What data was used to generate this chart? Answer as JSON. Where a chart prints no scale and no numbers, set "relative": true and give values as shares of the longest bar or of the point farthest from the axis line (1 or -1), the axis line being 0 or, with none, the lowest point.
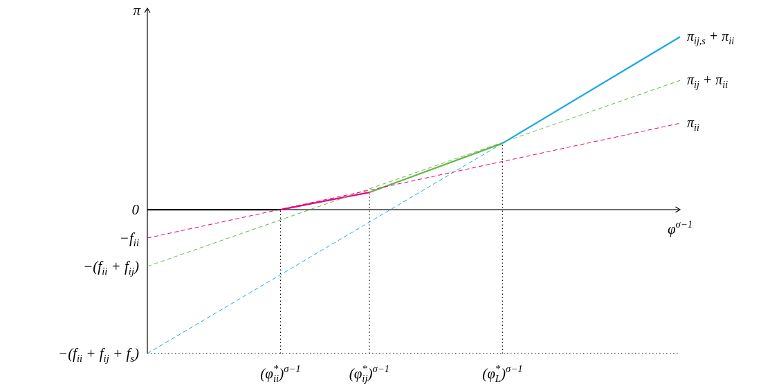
{
  "chart_data": {
    "type": "line",
    "relative": true,
    "xlabel": "φ$^{σ−1}$",
    "ylabel": "π",
    "categories": [
      null,
      null,
      null,
      "(φ$^{*}$$_{ii}$)$^{σ−1}$",
      null,
      "(φ$^{*}$$_{ij}$)$^{σ−1}$",
      null,
      null,
      "(φ$^{*}$$_{L}$)$^{σ−1}$",
      null,
      null,
      null,
      null
    ],
    "annotations": [
      "0",
      "−f$_{ii}$",
      "−(f$_{ii}$ + f$_{ij}$)",
      "−(f$_{ii}$ + f$_{ij}$ + f$_{s}$)"
    ],
    "legend": false,
    "marker": "none",
    "ref_lines": [
      {
        "axis": "y",
        "value": -0.832,
        "color": "#000000",
        "line_style": "dotted"
      },
      {
        "axis": "x",
        "value": "(φ$^{*}$$_{ii}$)$^{σ−1}$",
        "color": "#000000",
        "line_style": "dotted"
      },
      {
        "axis": "x",
        "value": "(φ$^{*}$$_{ij}$)$^{σ−1}$",
        "color": "#000000",
        "line_style": "dotted"
      },
      {
        "axis": "x",
        "value": "(φ$^{*}$$_{L}$)$^{σ−1}$",
        "color": "#000000",
        "line_style": "dotted"
      }
    ],
    "series": [
      {
        "name": "π$_{ii}$",
        "color": "#e6007e",
        "line_style": "dashed",
        "values": [
          -0.164,
          null,
          null,
          null,
          null,
          null,
          null,
          null,
          null,
          null,
          null,
          null,
          0.5
        ]
      },
      {
        "name": "π$_{ij}$ + π$_{ii}$",
        "color": "#62b946",
        "line_style": "dashed",
        "values": [
          -0.328,
          null,
          null,
          null,
          null,
          null,
          null,
          null,
          null,
          null,
          null,
          null,
          0.748
        ]
      },
      {
        "color": "#14a9e1",
        "line_style": "dashed",
        "values": [
          -0.832,
          null,
          null,
          null,
          null,
          null,
          null,
          null,
          0.384,
          null,
          null,
          null,
          null
        ]
      },
      {
        "color": "#000000",
        "line_style": "solid",
        "values": [
          0,
          null,
          null,
          0,
          null,
          null,
          null,
          null,
          null,
          null,
          null,
          null,
          null
        ]
      },
      {
        "color": "#e6007e",
        "line_style": "solid",
        "values": [
          null,
          null,
          null,
          0,
          null,
          0.1,
          null,
          null,
          null,
          null,
          null,
          null,
          null
        ]
      },
      {
        "color": "#62b946",
        "line_style": "solid",
        "values": [
          null,
          null,
          null,
          null,
          null,
          0.1,
          null,
          null,
          0.384,
          null,
          null,
          null,
          null
        ]
      },
      {
        "name": "π$_{ij,s}$ + π$_{ii}$",
        "color": "#14a9e1",
        "line_style": "solid",
        "values": [
          null,
          null,
          null,
          null,
          null,
          null,
          null,
          null,
          0.384,
          null,
          null,
          null,
          1
        ]
      }
    ]
  }
}
